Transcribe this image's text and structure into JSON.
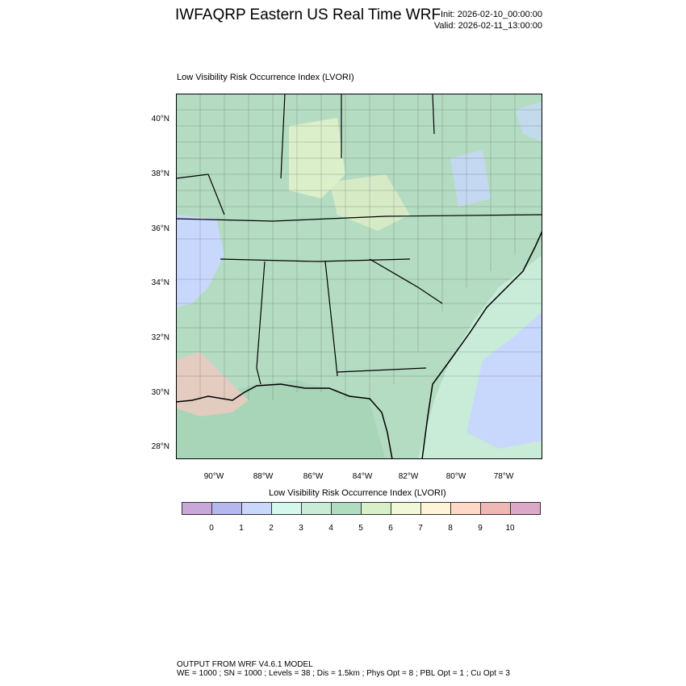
{
  "header": {
    "title": "IWFAQRP Eastern US Real Time WRF",
    "init": "Init: 2026-02-10_00:00:00",
    "valid": "Valid: 2026-02-11_13:00:00"
  },
  "plot": {
    "subtitle": "Low Visibility Risk Occurrence Index   (LVORI)",
    "lat_labels": [
      "40°N",
      "38°N",
      "36°N",
      "34°N",
      "32°N",
      "30°N",
      "28°N"
    ],
    "lon_labels": [
      "90°W",
      "88°W",
      "86°W",
      "84°W",
      "82°W",
      "80°W",
      "78°W"
    ],
    "extent": {
      "lon": [
        -91.5,
        -76.8
      ],
      "lat": [
        27.5,
        41.0
      ]
    }
  },
  "colorbar": {
    "title": "Low Visibility Risk Occurrence Index  (LVORI)",
    "colors": [
      "#c8a8d8",
      "#b4b8ee",
      "#c8d8fc",
      "#d4f8ee",
      "#c8ecd8",
      "#b0dcc0",
      "#d8f0c8",
      "#f0f8d8",
      "#fff4d8",
      "#ffd8c8",
      "#f0b8b4",
      "#dca8c8"
    ],
    "labels": [
      "0",
      "1",
      "2",
      "3",
      "4",
      "5",
      "6",
      "7",
      "8",
      "9",
      "10"
    ]
  },
  "footer": {
    "line1": "OUTPUT FROM WRF V4.6.1 MODEL",
    "line2": "WE = 1000 ; SN = 1000 ; Levels = 38 ; Dis = 1.5km ; Phys Opt = 8 ; PBL Opt = 1 ; Cu Opt = 3"
  }
}
